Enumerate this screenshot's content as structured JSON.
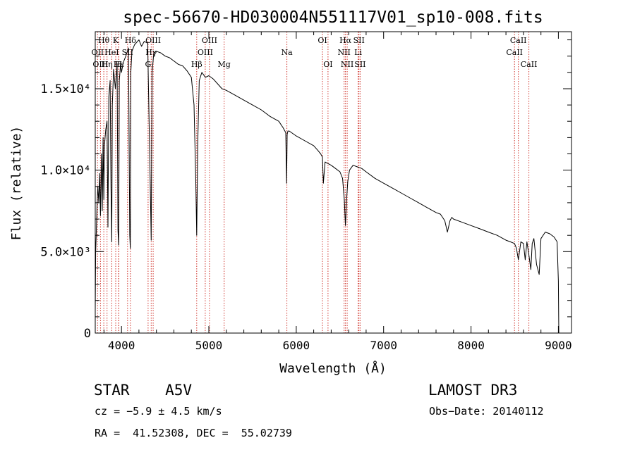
{
  "chart_data": {
    "type": "line",
    "title": "spec-56670-HD030004N551117V01_sp10-008.fits",
    "xlabel": "Wavelength (Å)",
    "ylabel": "Flux (relative)",
    "xlim": [
      3700,
      9150
    ],
    "ylim": [
      0,
      18500
    ],
    "x_ticks": [
      {
        "value": 4000,
        "label": "4000"
      },
      {
        "value": 5000,
        "label": "5000"
      },
      {
        "value": 6000,
        "label": "6000"
      },
      {
        "value": 7000,
        "label": "7000"
      },
      {
        "value": 8000,
        "label": "8000"
      },
      {
        "value": 9000,
        "label": "9000"
      }
    ],
    "y_ticks": [
      {
        "value": 0,
        "label": "0"
      },
      {
        "value": 5000,
        "label": "5.0×10³"
      },
      {
        "value": 10000,
        "label": "1.0×10⁴"
      },
      {
        "value": 15000,
        "label": "1.5×10⁴"
      }
    ],
    "series": [
      {
        "name": "Flux",
        "color": "#000000",
        "x": [
          3700,
          3705,
          3712,
          3720,
          3730,
          3740,
          3750,
          3760,
          3770,
          3780,
          3790,
          3798,
          3805,
          3820,
          3835,
          3845,
          3855,
          3870,
          3880,
          3889,
          3895,
          3910,
          3930,
          3950,
          3960,
          3968,
          3975,
          3990,
          4000,
          4020,
          4050,
          4080,
          4095,
          4101,
          4107,
          4120,
          4150,
          4200,
          4230,
          4260,
          4300,
          4330,
          4340,
          4350,
          4370,
          4400,
          4450,
          4500,
          4550,
          4600,
          4650,
          4700,
          4750,
          4800,
          4830,
          4850,
          4861,
          4872,
          4890,
          4920,
          4960,
          5000,
          5050,
          5100,
          5150,
          5200,
          5300,
          5400,
          5500,
          5600,
          5700,
          5800,
          5850,
          5880,
          5890,
          5896,
          5905,
          5920,
          6000,
          6100,
          6200,
          6250,
          6280,
          6300,
          6310,
          6330,
          6400,
          6450,
          6500,
          6530,
          6550,
          6563,
          6575,
          6590,
          6610,
          6650,
          6700,
          6750,
          6800,
          6900,
          7000,
          7100,
          7200,
          7300,
          7400,
          7500,
          7600,
          7650,
          7700,
          7730,
          7760,
          7780,
          7800,
          7900,
          8000,
          8100,
          8200,
          8300,
          8400,
          8450,
          8498,
          8520,
          8542,
          8570,
          8600,
          8620,
          8640,
          8662,
          8685,
          8700,
          8720,
          8750,
          8780,
          8800,
          8850,
          8900,
          8950,
          8985,
          9000,
          9005
        ],
        "values": [
          1400,
          5000,
          6200,
          7800,
          9000,
          8000,
          9800,
          7200,
          11000,
          7500,
          12000,
          8200,
          11500,
          12500,
          13000,
          6500,
          14500,
          15500,
          9000,
          5600,
          14000,
          16200,
          15000,
          16500,
          6300,
          5400,
          15500,
          16500,
          16000,
          16600,
          17000,
          17500,
          6000,
          5200,
          16000,
          17300,
          17700,
          18000,
          17600,
          17900,
          17800,
          9000,
          5700,
          16000,
          17200,
          17300,
          17200,
          17000,
          16900,
          16700,
          16500,
          16400,
          16100,
          15700,
          14000,
          9500,
          6000,
          11500,
          15500,
          16000,
          15700,
          15800,
          15600,
          15300,
          15000,
          14900,
          14600,
          14300,
          14000,
          13700,
          13300,
          13000,
          12600,
          12300,
          9200,
          12200,
          12400,
          12400,
          12100,
          11800,
          11500,
          11200,
          11000,
          10800,
          9200,
          10500,
          10300,
          10100,
          9900,
          9500,
          8200,
          6600,
          8100,
          9300,
          10000,
          10300,
          10200,
          10100,
          9900,
          9500,
          9200,
          8900,
          8600,
          8300,
          8000,
          7700,
          7400,
          7300,
          6900,
          6200,
          6900,
          7100,
          7000,
          6800,
          6600,
          6400,
          6200,
          6000,
          5700,
          5600,
          5500,
          5200,
          4500,
          5600,
          5500,
          4500,
          5600,
          4800,
          3900,
          5500,
          5800,
          4200,
          3600,
          5800,
          6200,
          6100,
          5900,
          5600,
          3200,
          0
        ]
      }
    ],
    "lines": [
      {
        "label": "Hθ",
        "wave": 3798,
        "row": 1
      },
      {
        "label": "OII",
        "wave": 3727,
        "row": 2
      },
      {
        "label": "OIII",
        "wave": 3760,
        "row": 3
      },
      {
        "label": "Hε",
        "wave": 3970,
        "row": 3
      },
      {
        "label": "Hη",
        "wave": 3835,
        "row": 3
      },
      {
        "label": "HeI",
        "wave": 3889,
        "row": 2
      },
      {
        "label": "K",
        "wave": 3934,
        "row": 1
      },
      {
        "label": "SII",
        "wave": 4070,
        "row": 2
      },
      {
        "label": "H",
        "wave": 3968,
        "row": 3
      },
      {
        "label": "Hδ",
        "wave": 4102,
        "row": 1
      },
      {
        "label": "OIII",
        "wave": 4363,
        "row": 1
      },
      {
        "label": "Hγ",
        "wave": 4340,
        "row": 2
      },
      {
        "label": "G",
        "wave": 4305,
        "row": 3
      },
      {
        "label": "Hβ",
        "wave": 4861,
        "row": 3
      },
      {
        "label": "OIII",
        "wave": 4959,
        "row": 2
      },
      {
        "label": "OIII",
        "wave": 5007,
        "row": 1
      },
      {
        "label": "Mg",
        "wave": 5175,
        "row": 3
      },
      {
        "label": "Na",
        "wave": 5893,
        "row": 2
      },
      {
        "label": "OI",
        "wave": 6300,
        "row": 1
      },
      {
        "label": "OI",
        "wave": 6364,
        "row": 3
      },
      {
        "label": "Hα",
        "wave": 6563,
        "row": 1
      },
      {
        "label": "NII",
        "wave": 6548,
        "row": 2
      },
      {
        "label": "NII",
        "wave": 6583,
        "row": 3
      },
      {
        "label": "SII",
        "wave": 6717,
        "row": 1
      },
      {
        "label": "Li",
        "wave": 6708,
        "row": 2
      },
      {
        "label": "SII",
        "wave": 6731,
        "row": 3
      },
      {
        "label": "CaII",
        "wave": 8542,
        "row": 1
      },
      {
        "label": "CaII",
        "wave": 8498,
        "row": 2
      },
      {
        "label": "CaII",
        "wave": 8662,
        "row": 3
      }
    ]
  },
  "info": {
    "object": "STAR    A5V",
    "survey": "LAMOST DR3",
    "cz": "cz = −5.9 ± 4.5 km/s",
    "obs_date": "Obs−Date: 20140112",
    "coords": "RA =  41.52308, DEC =  55.02739"
  }
}
